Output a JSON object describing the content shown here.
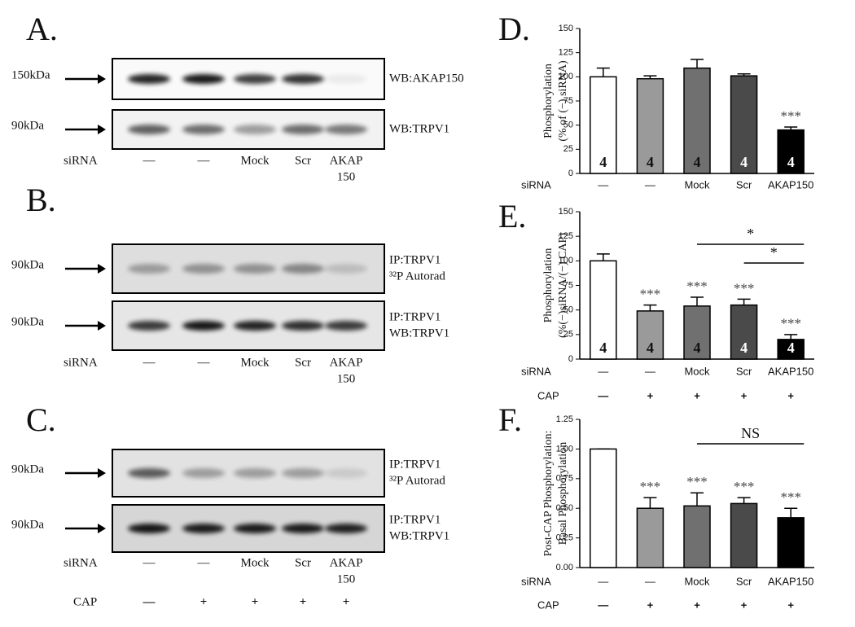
{
  "blots": [
    {
      "letter": "A.",
      "rows": [
        {
          "marker": "150kDa",
          "labels": [
            "WB:AKAP150"
          ]
        },
        {
          "marker": "90kDa",
          "labels": [
            "WB:TRPV1"
          ]
        }
      ],
      "siRNA_label": "siRNA",
      "siRNA": [
        [
          "—"
        ],
        [
          "—"
        ],
        [
          "Mock"
        ],
        [
          "Scr"
        ],
        [
          "AKAP",
          "150"
        ]
      ]
    },
    {
      "letter": "B.",
      "rows": [
        {
          "marker": "90kDa",
          "labels": [
            "IP:TRPV1",
            "³²P Autorad"
          ]
        },
        {
          "marker": "90kDa",
          "labels": [
            "IP:TRPV1",
            "WB:TRPV1"
          ]
        }
      ],
      "siRNA_label": "siRNA",
      "siRNA": [
        [
          "—"
        ],
        [
          "—"
        ],
        [
          "Mock"
        ],
        [
          "Scr"
        ],
        [
          "AKAP",
          "150"
        ]
      ]
    },
    {
      "letter": "C.",
      "rows": [
        {
          "marker": "90kDa",
          "labels": [
            "IP:TRPV1",
            "³²P Autorad"
          ]
        },
        {
          "marker": "90kDa",
          "labels": [
            "IP:TRPV1",
            "WB:TRPV1"
          ]
        }
      ],
      "siRNA_label": "siRNA",
      "siRNA": [
        [
          "—"
        ],
        [
          "—"
        ],
        [
          "Mock"
        ],
        [
          "Scr"
        ],
        [
          "AKAP",
          "150"
        ]
      ],
      "cap_label": "CAP",
      "cap": [
        "—",
        "+",
        "+",
        "+",
        "+"
      ]
    }
  ],
  "chart_data": [
    {
      "type": "bar",
      "letter": "D.",
      "ylabel": [
        "Phosphorylation",
        "(% of (−) siRNA)"
      ],
      "categories": [
        "—",
        "—",
        "Mock",
        "Scr",
        "AKAP150"
      ],
      "category_label": "siRNA",
      "values": [
        100,
        98,
        109,
        101,
        45
      ],
      "errors": [
        9,
        3,
        9,
        2,
        3
      ],
      "n": [
        4,
        4,
        4,
        4,
        4
      ],
      "significance": [
        null,
        null,
        null,
        null,
        "***"
      ],
      "colors": [
        "#ffffff",
        "#9a9a9a",
        "#707070",
        "#4a4a4a",
        "#000000"
      ],
      "ylim": [
        0,
        150
      ],
      "yticks": [
        0,
        25,
        50,
        75,
        100,
        125,
        150
      ]
    },
    {
      "type": "bar",
      "letter": "E.",
      "ylabel": [
        "Phosphorylation",
        "(%(−)siRNA/(−) CAP)"
      ],
      "categories": [
        "—",
        "—",
        "Mock",
        "Scr",
        "AKAP150"
      ],
      "category_label": "siRNA",
      "cap_label": "CAP",
      "cap": [
        "—",
        "+",
        "+",
        "+",
        "+"
      ],
      "values": [
        100,
        49,
        54,
        55,
        20
      ],
      "errors": [
        7,
        6,
        9,
        6,
        5
      ],
      "n": [
        4,
        4,
        4,
        4,
        4
      ],
      "significance": [
        null,
        "***",
        "***",
        "***",
        "***"
      ],
      "brackets": [
        {
          "from": 2,
          "to": 4,
          "text": "*"
        },
        {
          "from": 3,
          "to": 4,
          "text": "*"
        }
      ],
      "colors": [
        "#ffffff",
        "#9a9a9a",
        "#707070",
        "#4a4a4a",
        "#000000"
      ],
      "ylim": [
        0,
        150
      ],
      "yticks": [
        0,
        25,
        50,
        75,
        100,
        125,
        150
      ]
    },
    {
      "type": "bar",
      "letter": "F.",
      "ylabel": [
        "Post-CAP Phosphorylation:",
        "Basal Phosphorylation"
      ],
      "categories": [
        "—",
        "—",
        "Mock",
        "Scr",
        "AKAP150"
      ],
      "category_label": "siRNA",
      "cap_label": "CAP",
      "cap": [
        "—",
        "+",
        "+",
        "+",
        "+"
      ],
      "values": [
        1.0,
        0.5,
        0.52,
        0.54,
        0.42
      ],
      "errors": [
        0,
        0.09,
        0.11,
        0.05,
        0.08
      ],
      "significance": [
        null,
        "***",
        "***",
        "***",
        "***"
      ],
      "brackets": [
        {
          "from": 2,
          "to": 4,
          "text": "NS"
        }
      ],
      "colors": [
        "#ffffff",
        "#9a9a9a",
        "#707070",
        "#4a4a4a",
        "#000000"
      ],
      "ylim": [
        0,
        1.25
      ],
      "yticks": [
        {
          "value": 0,
          "label": "0.00"
        },
        {
          "value": 0.25,
          "label": "0.25"
        },
        {
          "value": 0.5,
          "label": "0.50"
        },
        {
          "value": 0.75,
          "label": "0.75"
        },
        {
          "value": 1,
          "label": "1.00"
        },
        {
          "value": 1.25,
          "label": "1.25"
        }
      ]
    }
  ]
}
